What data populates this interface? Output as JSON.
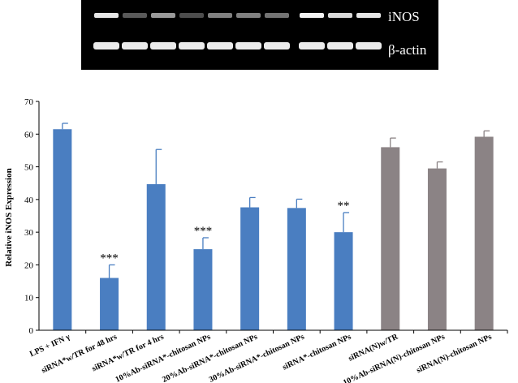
{
  "blot": {
    "label_iNOS": "iNOS",
    "label_actin": "β-actin",
    "background": "#000000",
    "band_color": "#ffffff"
  },
  "chart_data": {
    "type": "bar",
    "categories": [
      "LPS + IFN γ",
      "siRNA*w/TR for 48 hrs",
      "siRNA*w/TR for 4 hrs",
      "10%Ab-siRNA*-chitosan NPs",
      "20%Ab-siRNA*-chitosan NPs",
      "30%Ab-siRNA*-chitosan NPs",
      "siRNA*-chitosan NPs",
      "siRNA(N)w/TR",
      "10%Ab-siRNA(N)-chitosan NPs",
      "siRNA(N)-chitosan NPs"
    ],
    "values": [
      61.5,
      16,
      44.7,
      24.8,
      37.6,
      37.4,
      30,
      56,
      49.5,
      59.2
    ],
    "errors": [
      1.8,
      4,
      10.6,
      3.5,
      3,
      2.7,
      6,
      2.8,
      2,
      1.8
    ],
    "annotations": [
      "",
      "***",
      "",
      "***",
      "",
      "",
      "**",
      "",
      "",
      ""
    ],
    "bar_colors": [
      "#4A7EC1",
      "#4A7EC1",
      "#4A7EC1",
      "#4A7EC1",
      "#4A7EC1",
      "#4A7EC1",
      "#4A7EC1",
      "#8B8385",
      "#8B8385",
      "#8B8385"
    ],
    "title": "",
    "xlabel": "",
    "ylabel": "Relative iNOS Expression",
    "ylim": [
      0,
      70
    ],
    "yticks": [
      0,
      10,
      20,
      30,
      40,
      50,
      60,
      70
    ],
    "grid": false,
    "legend": "none"
  }
}
